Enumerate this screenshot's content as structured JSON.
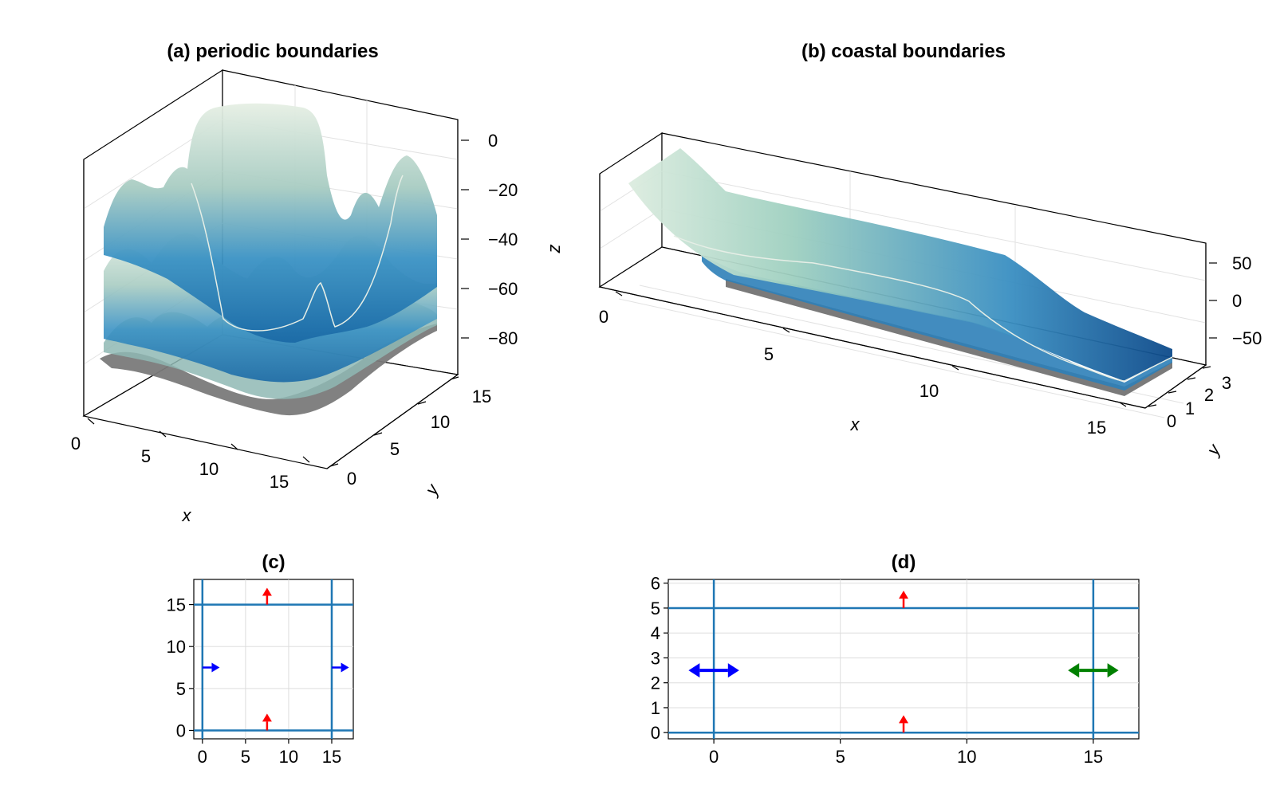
{
  "chart_data": [
    {
      "panel": "a",
      "type": "surface3d",
      "title": "(a) periodic boundaries",
      "xlabel": "x",
      "ylabel": "y",
      "zlabel": "z",
      "xticks": [
        "0",
        "5",
        "10",
        "15"
      ],
      "yticks": [
        "0",
        "5",
        "10",
        "15"
      ],
      "zticks": [
        "0",
        "−20",
        "−40",
        "−60",
        "−80"
      ],
      "xlim": [
        0,
        17
      ],
      "ylim": [
        0,
        17
      ],
      "zlim": [
        -95,
        5
      ],
      "colormap": "deep-blue-to-pale-green",
      "bottom_color": "#7a7a7a"
    },
    {
      "panel": "b",
      "type": "surface3d",
      "title": "(b) coastal boundaries",
      "xlabel": "x",
      "ylabel": "y",
      "zlabel": "z",
      "xticks": [
        "0",
        "5",
        "10",
        "15"
      ],
      "yticks": [
        "0",
        "1",
        "2",
        "3"
      ],
      "zticks": [
        "50",
        "0",
        "−50"
      ],
      "xlim": [
        0,
        16
      ],
      "ylim": [
        0,
        3
      ],
      "zlim": [
        -70,
        70
      ],
      "colormap": "pale-green-to-deep-blue",
      "bottom_color": "#7a7a7a"
    },
    {
      "panel": "c",
      "type": "line",
      "title": "(c)",
      "xticks": [
        "0",
        "5",
        "10",
        "15"
      ],
      "yticks": [
        "0",
        "5",
        "10",
        "15"
      ],
      "xlim": [
        -1,
        17.5
      ],
      "ylim": [
        -1,
        18
      ],
      "lines": [
        {
          "orientation": "vertical",
          "value": 0
        },
        {
          "orientation": "vertical",
          "value": 15
        },
        {
          "orientation": "horizontal",
          "value": 0
        },
        {
          "orientation": "horizontal",
          "value": 15
        }
      ],
      "arrows": [
        {
          "x": 7.5,
          "y": 0,
          "dx": 0,
          "dy": 2,
          "color": "#ff0000",
          "both": false
        },
        {
          "x": 7.5,
          "y": 15,
          "dx": 0,
          "dy": 2,
          "color": "#ff0000",
          "both": false
        },
        {
          "x": 0,
          "y": 7.5,
          "dx": 2,
          "dy": 0,
          "color": "#0000ff",
          "both": false
        },
        {
          "x": 15,
          "y": 7.5,
          "dx": 2,
          "dy": 0,
          "color": "#0000ff",
          "both": false
        }
      ]
    },
    {
      "panel": "d",
      "type": "line",
      "title": "(d)",
      "xticks": [
        "0",
        "5",
        "10",
        "15"
      ],
      "yticks": [
        "0",
        "1",
        "2",
        "3",
        "4",
        "5",
        "6"
      ],
      "xlim": [
        -1.8,
        16.8
      ],
      "ylim": [
        -0.25,
        6.15
      ],
      "lines": [
        {
          "orientation": "vertical",
          "value": 0
        },
        {
          "orientation": "vertical",
          "value": 15
        },
        {
          "orientation": "horizontal",
          "value": 0
        },
        {
          "orientation": "horizontal",
          "value": 5
        }
      ],
      "arrows": [
        {
          "x": 7.5,
          "y": 0,
          "dx": 0,
          "dy": 0.7,
          "color": "#ff0000",
          "both": false
        },
        {
          "x": 7.5,
          "y": 5,
          "dx": 0,
          "dy": 0.7,
          "color": "#ff0000",
          "both": false
        },
        {
          "x": 0,
          "y": 2.5,
          "dx": 1,
          "dy": 0,
          "color": "#0000ff",
          "both": true
        },
        {
          "x": 15,
          "y": 2.5,
          "dx": 1,
          "dy": 0,
          "color": "#008000",
          "both": true
        }
      ]
    }
  ],
  "colors": {
    "line": "#1f77b4",
    "grid": "#dddddd",
    "deep": "#0c4a8a",
    "mid": "#2f8fc4",
    "light": "#c7ddc8",
    "bottom": "#7a7a7a"
  }
}
